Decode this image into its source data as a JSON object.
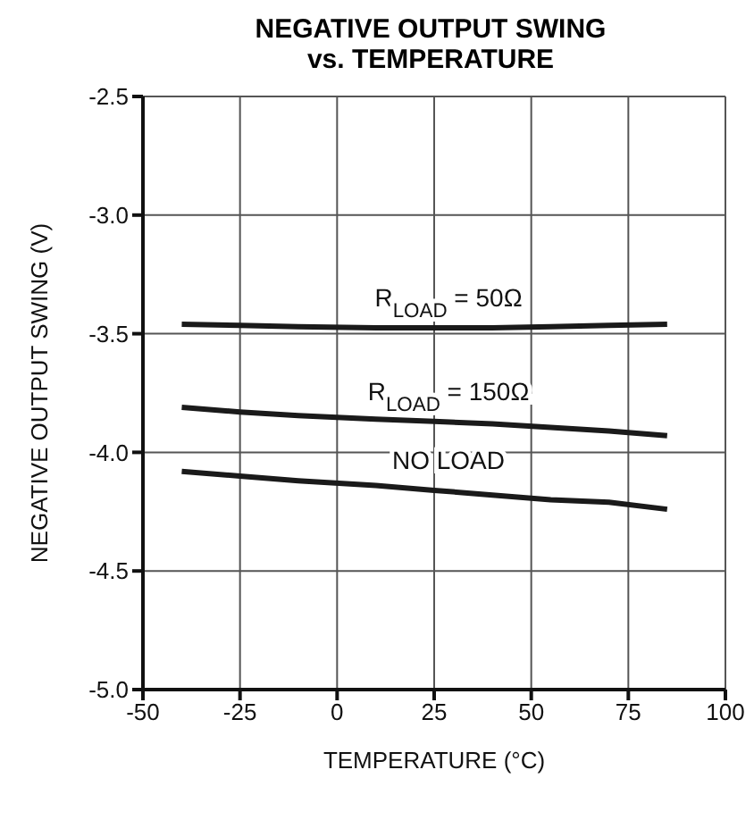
{
  "chart_data": {
    "type": "line",
    "title": "NEGATIVE OUTPUT SWING vs. TEMPERATURE",
    "xlabel": "TEMPERATURE (°C)",
    "ylabel": "NEGATIVE OUTPUT SWING (V)",
    "x": [
      -40,
      -25,
      -10,
      10,
      25,
      40,
      55,
      70,
      85
    ],
    "series": [
      {
        "name": "R$_{LOAD}$ = 50Ω",
        "color": "#1a1a1a",
        "values": [
          -3.46,
          -3.465,
          -3.47,
          -3.475,
          -3.475,
          -3.475,
          -3.47,
          -3.465,
          -3.46
        ]
      },
      {
        "name": "R$_{LOAD}$ = 150Ω",
        "color": "#1a1a1a",
        "values": [
          -3.81,
          -3.83,
          -3.845,
          -3.86,
          -3.87,
          -3.88,
          -3.895,
          -3.91,
          -3.93
        ]
      },
      {
        "name": "NO LOAD",
        "color": "#1a1a1a",
        "values": [
          -4.08,
          -4.1,
          -4.12,
          -4.14,
          -4.16,
          -4.18,
          -4.2,
          -4.21,
          -4.24
        ]
      }
    ],
    "xlim": [
      -50,
      100
    ],
    "xticks": [
      -50,
      -25,
      0,
      25,
      50,
      75,
      100
    ],
    "ylim": [
      -5.0,
      -2.5
    ],
    "yticks": [
      {
        "value": -5,
        "label": "-5.0"
      },
      -4.5,
      {
        "value": -4,
        "label": "-4.0"
      },
      -3.5,
      {
        "value": -3,
        "label": "-3.0"
      },
      -2.5
    ],
    "grid": true,
    "marker": "none",
    "line_style": "solid"
  }
}
